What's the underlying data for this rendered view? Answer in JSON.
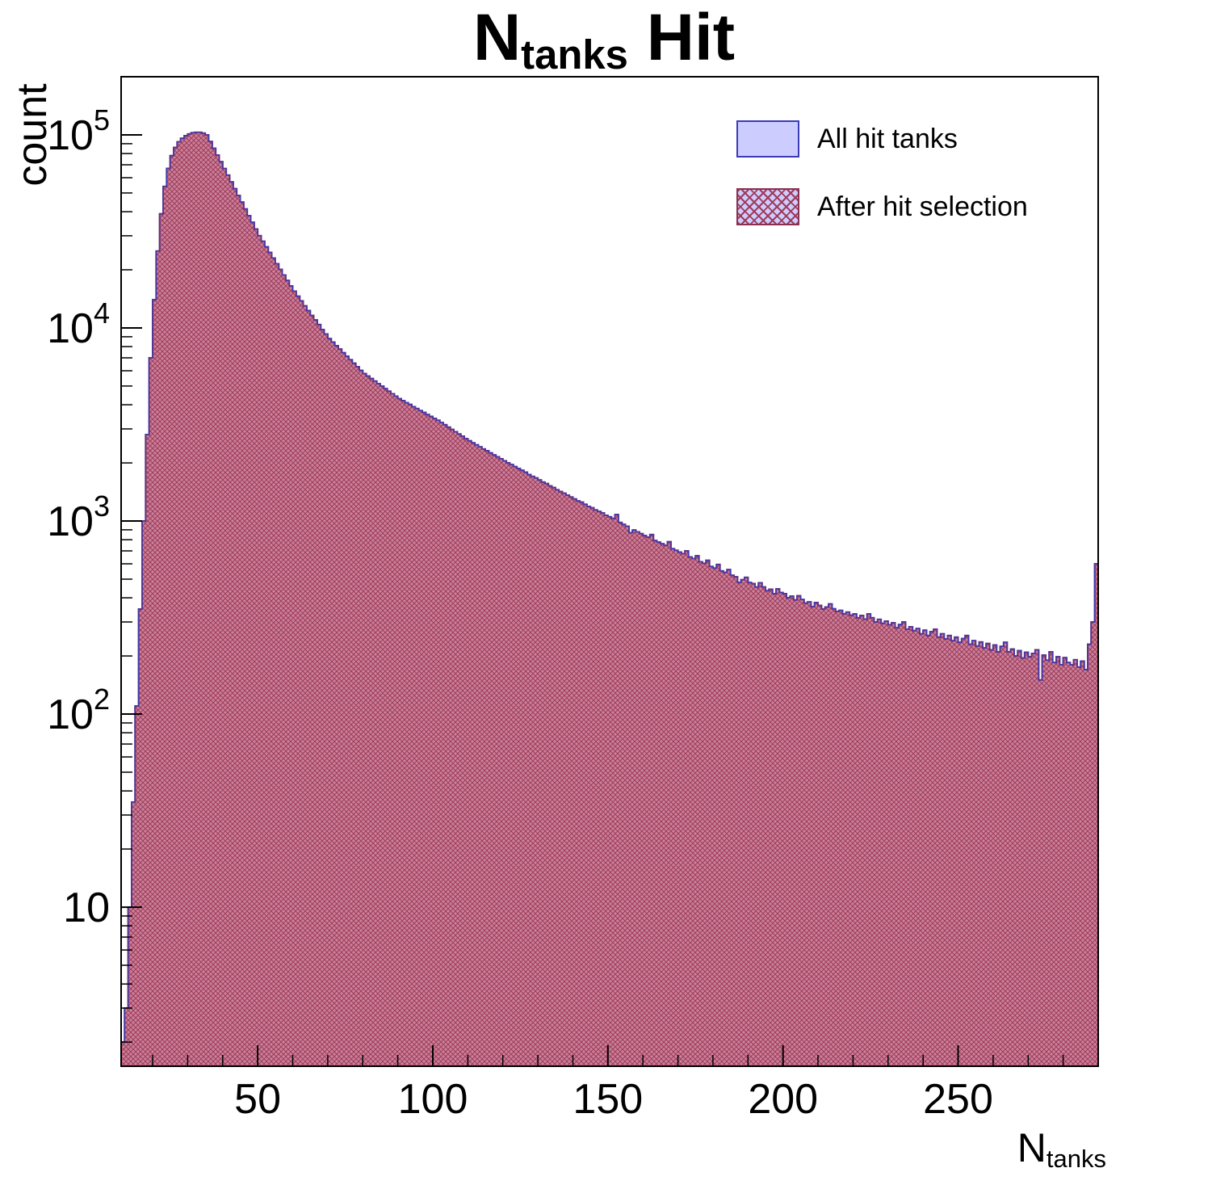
{
  "title": {
    "prefix": "N",
    "subscript": "tanks",
    "suffix": " Hit"
  },
  "axes": {
    "y_label": "count",
    "x_label_prefix": "N",
    "x_label_subscript": "tanks"
  },
  "legend": {
    "items": [
      {
        "label": "All hit tanks",
        "swatch": "solid-lavender"
      },
      {
        "label": "After hit selection",
        "swatch": "red-crosshatch-over-lavender"
      }
    ]
  },
  "colors": {
    "all_fill": "#ccccfe",
    "all_edge": "#3b3bb8",
    "after_base": "#c9829c",
    "after_hatch": "#a03a58",
    "after_edge": "#8b3050",
    "frame": "#000000",
    "background": "#ffffff"
  },
  "chart_data": {
    "type": "bar",
    "subtype": "step-histogram",
    "title": "N_tanks Hit",
    "xlabel": "N_tanks",
    "ylabel": "count",
    "yscale": "log",
    "xlim": [
      11,
      290
    ],
    "ylim": [
      1.5,
      200000
    ],
    "x_ticks": [
      50,
      100,
      150,
      200,
      250
    ],
    "x_minor_step": 10,
    "y_ticks": [
      10,
      100,
      1000,
      10000,
      100000
    ],
    "grid": false,
    "legend_position": "upper-right-inside",
    "x_start": 11,
    "bin_width": 1,
    "series": [
      {
        "name": "All hit tanks",
        "values": [
          2,
          3,
          10,
          35,
          110,
          350,
          1000,
          2800,
          7000,
          14000,
          25000,
          39000,
          54000,
          67000,
          78000,
          86000,
          92000,
          96000,
          99000,
          101000,
          102500,
          103000,
          103000,
          102000,
          100000,
          92300,
          85200,
          78600,
          72500,
          66900,
          61800,
          57000,
          52600,
          48500,
          44800,
          41300,
          38100,
          35200,
          32500,
          30000,
          28100,
          26300,
          24600,
          23000,
          21500,
          20100,
          18800,
          17600,
          16500,
          15500,
          14600,
          13800,
          13000,
          12300,
          11600,
          11000,
          10400,
          9800,
          9300,
          8800,
          8440,
          8090,
          7760,
          7440,
          7130,
          6840,
          6560,
          6290,
          6030,
          5800,
          5630,
          5460,
          5300,
          5140,
          4990,
          4840,
          4700,
          4560,
          4430,
          4300,
          4200,
          4100,
          4010,
          3910,
          3820,
          3730,
          3650,
          3560,
          3480,
          3400,
          3320,
          3230,
          3150,
          3060,
          2980,
          2900,
          2820,
          2750,
          2670,
          2600,
          2540,
          2480,
          2420,
          2360,
          2310,
          2250,
          2200,
          2150,
          2100,
          2050,
          2000,
          1960,
          1910,
          1870,
          1830,
          1790,
          1740,
          1700,
          1670,
          1630,
          1590,
          1560,
          1520,
          1490,
          1450,
          1420,
          1390,
          1360,
          1330,
          1300,
          1270,
          1250,
          1220,
          1190,
          1170,
          1140,
          1120,
          1100,
          1070,
          1050,
          1030,
          1080,
          982,
          960,
          939,
          870,
          898,
          878,
          859,
          840,
          824,
          850,
          792,
          777,
          762,
          747,
          780,
          718,
          704,
          690,
          677,
          700,
          651,
          639,
          660,
          615,
          603,
          625,
          581,
          570,
          595,
          551,
          541,
          560,
          523,
          514,
          480,
          496,
          510,
          480,
          474,
          455,
          478,
          455,
          435,
          443,
          420,
          445,
          426,
          420,
          400,
          408,
          390,
          410,
          392,
          375,
          381,
          360,
          378,
          365,
          350,
          358,
          372,
          351,
          340,
          344,
          330,
          337,
          325,
          330,
          315,
          324,
          310,
          330,
          315,
          300,
          309,
          295,
          303,
          290,
          297,
          280,
          291,
          300,
          275,
          283,
          270,
          277,
          260,
          272,
          255,
          267,
          275,
          250,
          260,
          245,
          255,
          240,
          250,
          235,
          246,
          255,
          230,
          240,
          225,
          236,
          220,
          232,
          215,
          228,
          210,
          224,
          235,
          210,
          217,
          200,
          213,
          195,
          209,
          198,
          206,
          215,
          150,
          202,
          190,
          210,
          185,
          198,
          180,
          196,
          185,
          180,
          191,
          175,
          188,
          170,
          230,
          300,
          600
        ]
      },
      {
        "name": "After hit selection",
        "values": "same_as_first",
        "note_visible_overlap": "fully overlaps the first histogram"
      }
    ]
  }
}
